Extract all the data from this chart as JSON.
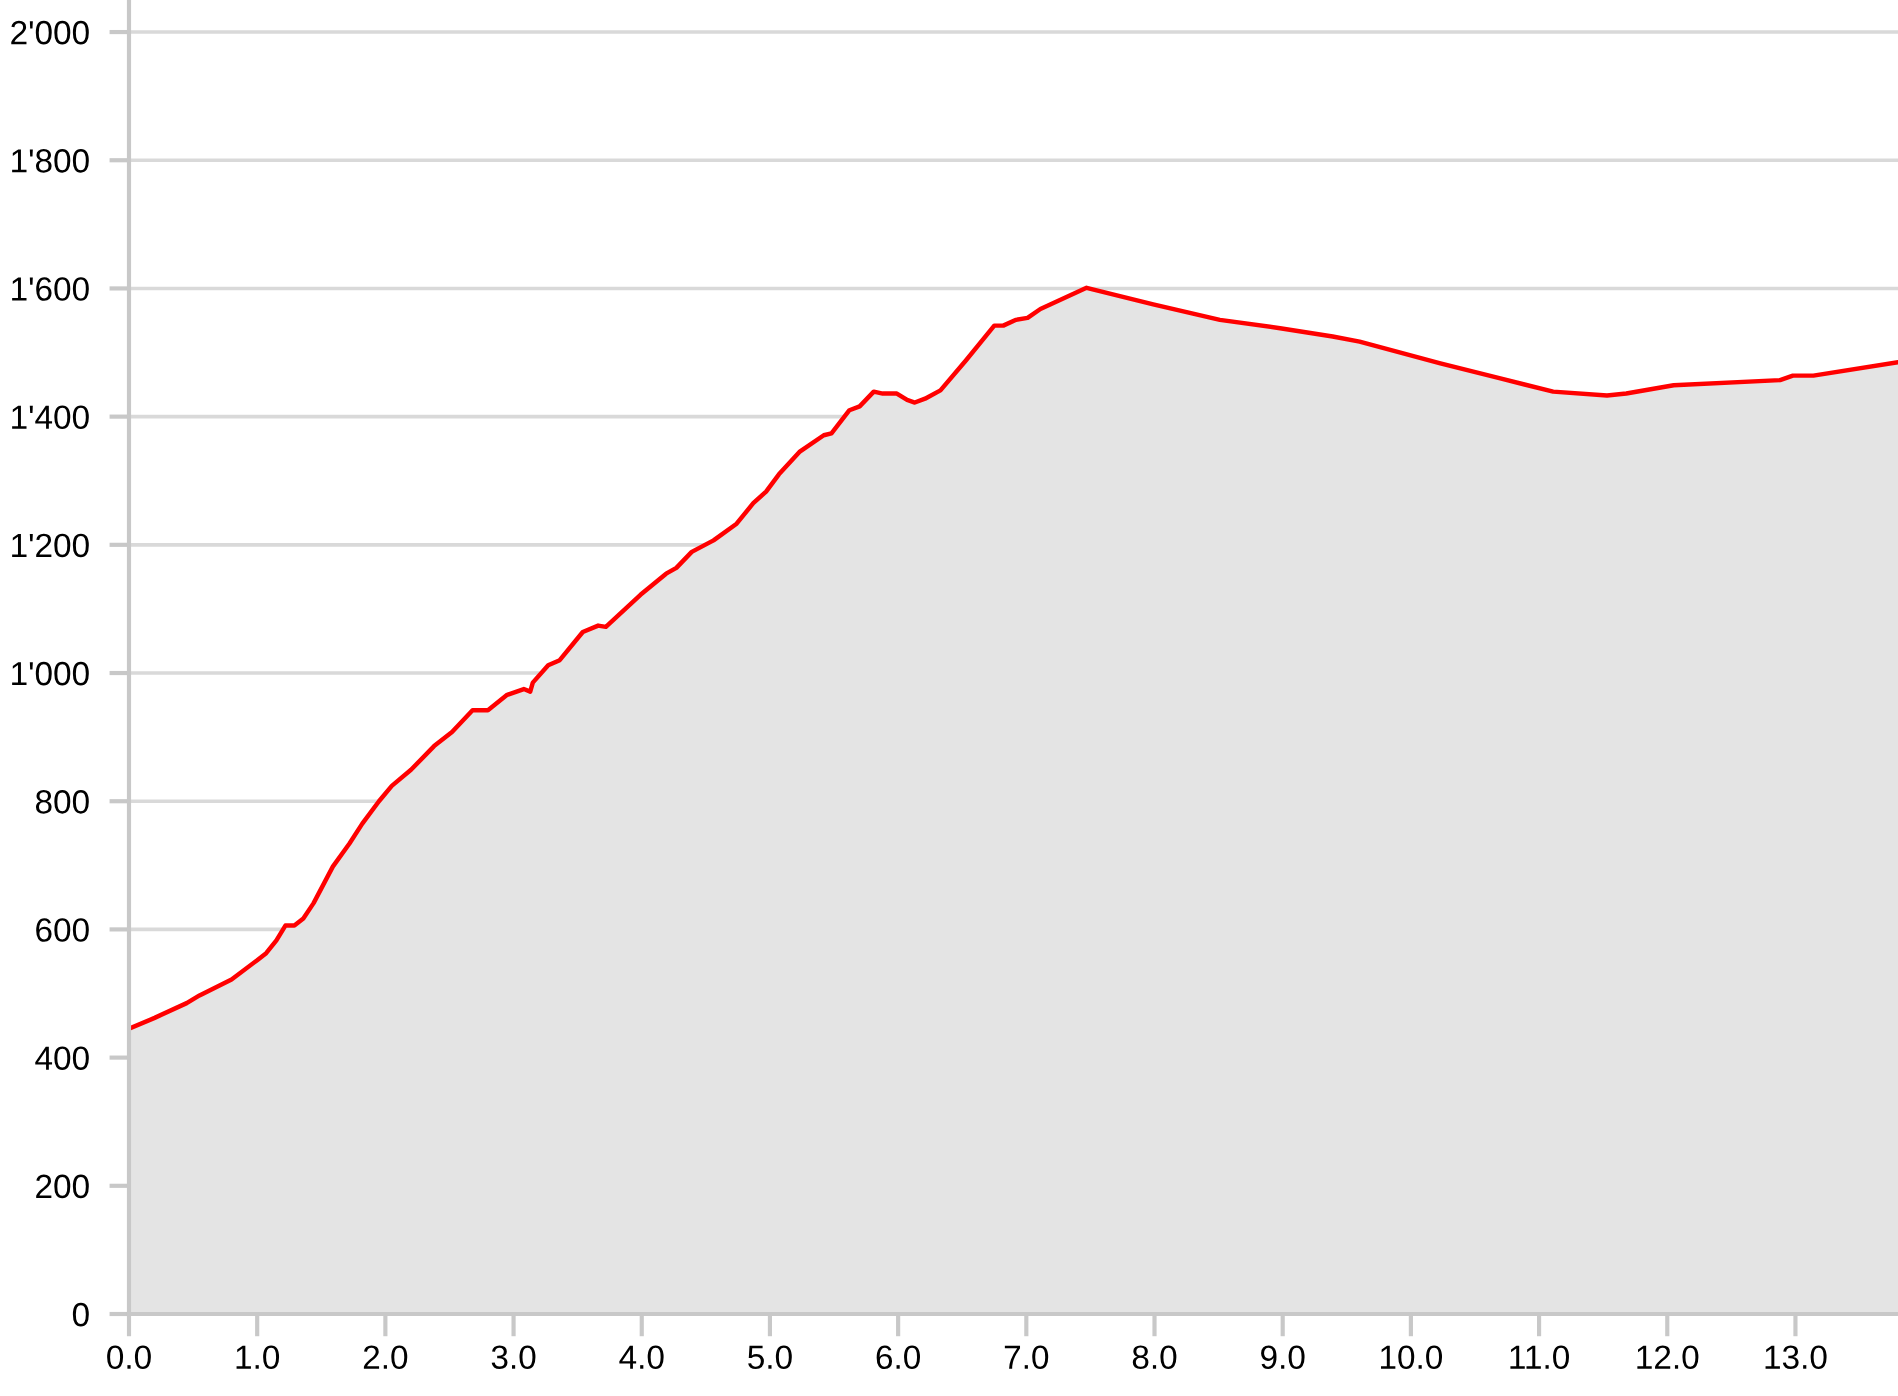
{
  "chart_data": {
    "type": "area",
    "x": [
      0,
      0.2,
      0.45,
      0.55,
      0.8,
      1.0,
      1.07,
      1.15,
      1.22,
      1.29,
      1.36,
      1.44,
      1.59,
      1.72,
      1.82,
      1.95,
      2.05,
      2.2,
      2.38,
      2.52,
      2.68,
      2.8,
      2.95,
      3.08,
      3.13,
      3.15,
      3.27,
      3.36,
      3.54,
      3.66,
      3.72,
      3.99,
      4.19,
      4.27,
      4.39,
      4.56,
      4.74,
      4.87,
      4.97,
      5.07,
      5.23,
      5.42,
      5.48,
      5.62,
      5.7,
      5.81,
      5.88,
      5.99,
      6.07,
      6.13,
      6.21,
      6.33,
      6.53,
      6.75,
      6.82,
      6.92,
      7.01,
      7.11,
      7.47,
      7.99,
      8.51,
      8.98,
      9.39,
      9.6,
      10.23,
      10.69,
      11.11,
      11.53,
      11.68,
      12.05,
      12.88,
      12.98,
      13.14,
      13.8
    ],
    "series": [
      {
        "color": "#ff0000",
        "values": [
          445,
          462,
          485,
          497,
          522,
          552,
          563,
          583,
          606,
          606,
          617,
          641,
          698,
          734,
          765,
          800,
          824,
          849,
          886,
          908,
          942,
          942,
          966,
          975,
          971,
          985,
          1012,
          1020,
          1064,
          1074,
          1072,
          1122,
          1155,
          1164,
          1189,
          1207,
          1233,
          1265,
          1283,
          1310,
          1345,
          1371,
          1374,
          1410,
          1416,
          1439,
          1436,
          1436,
          1426,
          1422,
          1428,
          1441,
          1488,
          1542,
          1542,
          1551,
          1554,
          1568,
          1601,
          1575,
          1551,
          1538,
          1525,
          1517,
          1483,
          1460,
          1439,
          1433,
          1436,
          1449,
          1457,
          1464,
          1464,
          1485
        ]
      }
    ],
    "xlim": [
      0,
      13.8
    ],
    "xticks": [
      {
        "value": 0,
        "label": "0.0"
      },
      {
        "value": 1,
        "label": "1.0"
      },
      {
        "value": 2,
        "label": "2.0"
      },
      {
        "value": 3,
        "label": "3.0"
      },
      {
        "value": 4,
        "label": "4.0"
      },
      {
        "value": 5,
        "label": "5.0"
      },
      {
        "value": 6,
        "label": "6.0"
      },
      {
        "value": 7,
        "label": "7.0"
      },
      {
        "value": 8,
        "label": "8.0"
      },
      {
        "value": 9,
        "label": "9.0"
      },
      {
        "value": 10,
        "label": "10.0"
      },
      {
        "value": 11,
        "label": "11.0"
      },
      {
        "value": 12,
        "label": "12.0"
      },
      {
        "value": 13,
        "label": "13.0"
      }
    ],
    "ylim": [
      0,
      2050
    ],
    "yticks": [
      0,
      200,
      400,
      600,
      800,
      {
        "value": 1000,
        "label": "1'000"
      },
      {
        "value": 1200,
        "label": "1'200"
      },
      {
        "value": 1400,
        "label": "1'400"
      },
      {
        "value": 1600,
        "label": "1'600"
      },
      {
        "value": 1800,
        "label": "1'800"
      },
      {
        "value": 2000,
        "label": "2'000"
      }
    ],
    "grid": "y"
  }
}
